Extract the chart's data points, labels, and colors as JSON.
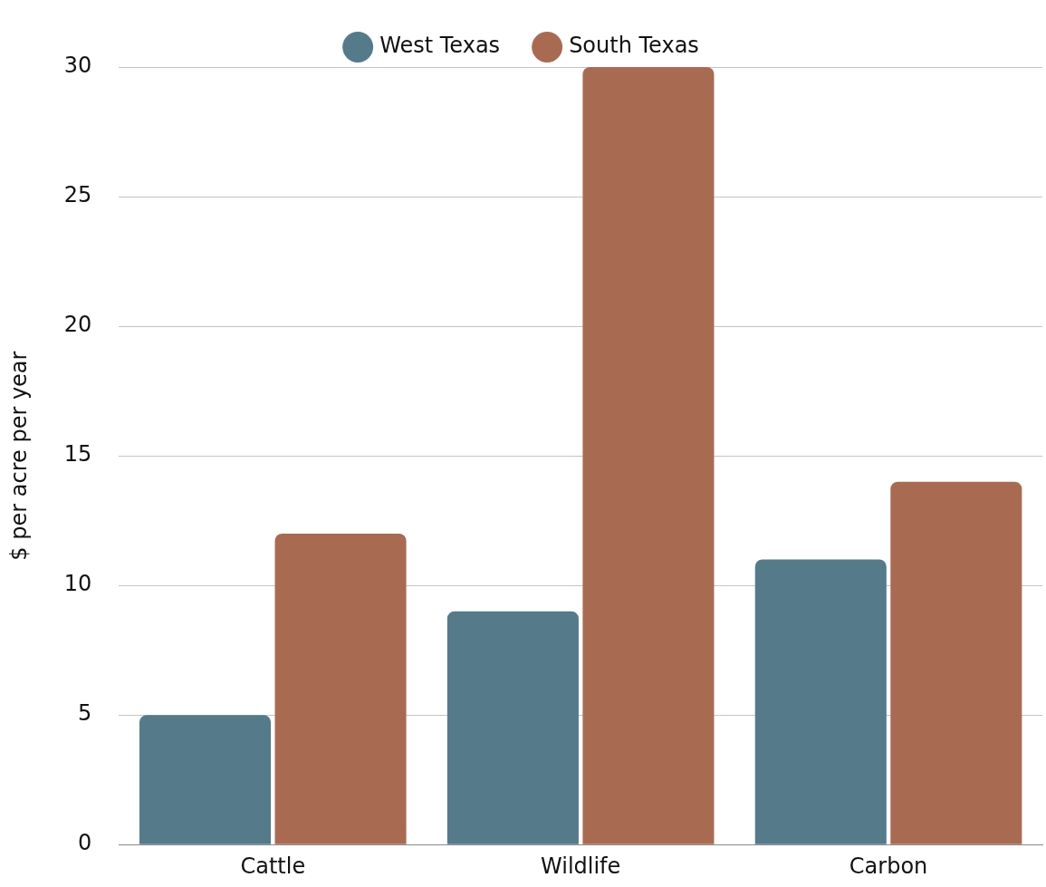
{
  "chart_data": {
    "type": "bar",
    "ylabel": "$ per acre per year",
    "categories": [
      "Cattle",
      "Wildlife",
      "Carbon"
    ],
    "series": [
      {
        "name": "West Texas",
        "color": "#557a8a",
        "values": [
          5,
          9,
          11
        ]
      },
      {
        "name": "South Texas",
        "color": "#a86b52",
        "values": [
          12,
          30,
          14
        ]
      }
    ],
    "ylim": [
      0,
      30
    ],
    "yticks": [
      0,
      5,
      10,
      15,
      20,
      25,
      30
    ],
    "grid": "y",
    "legend": "top"
  }
}
